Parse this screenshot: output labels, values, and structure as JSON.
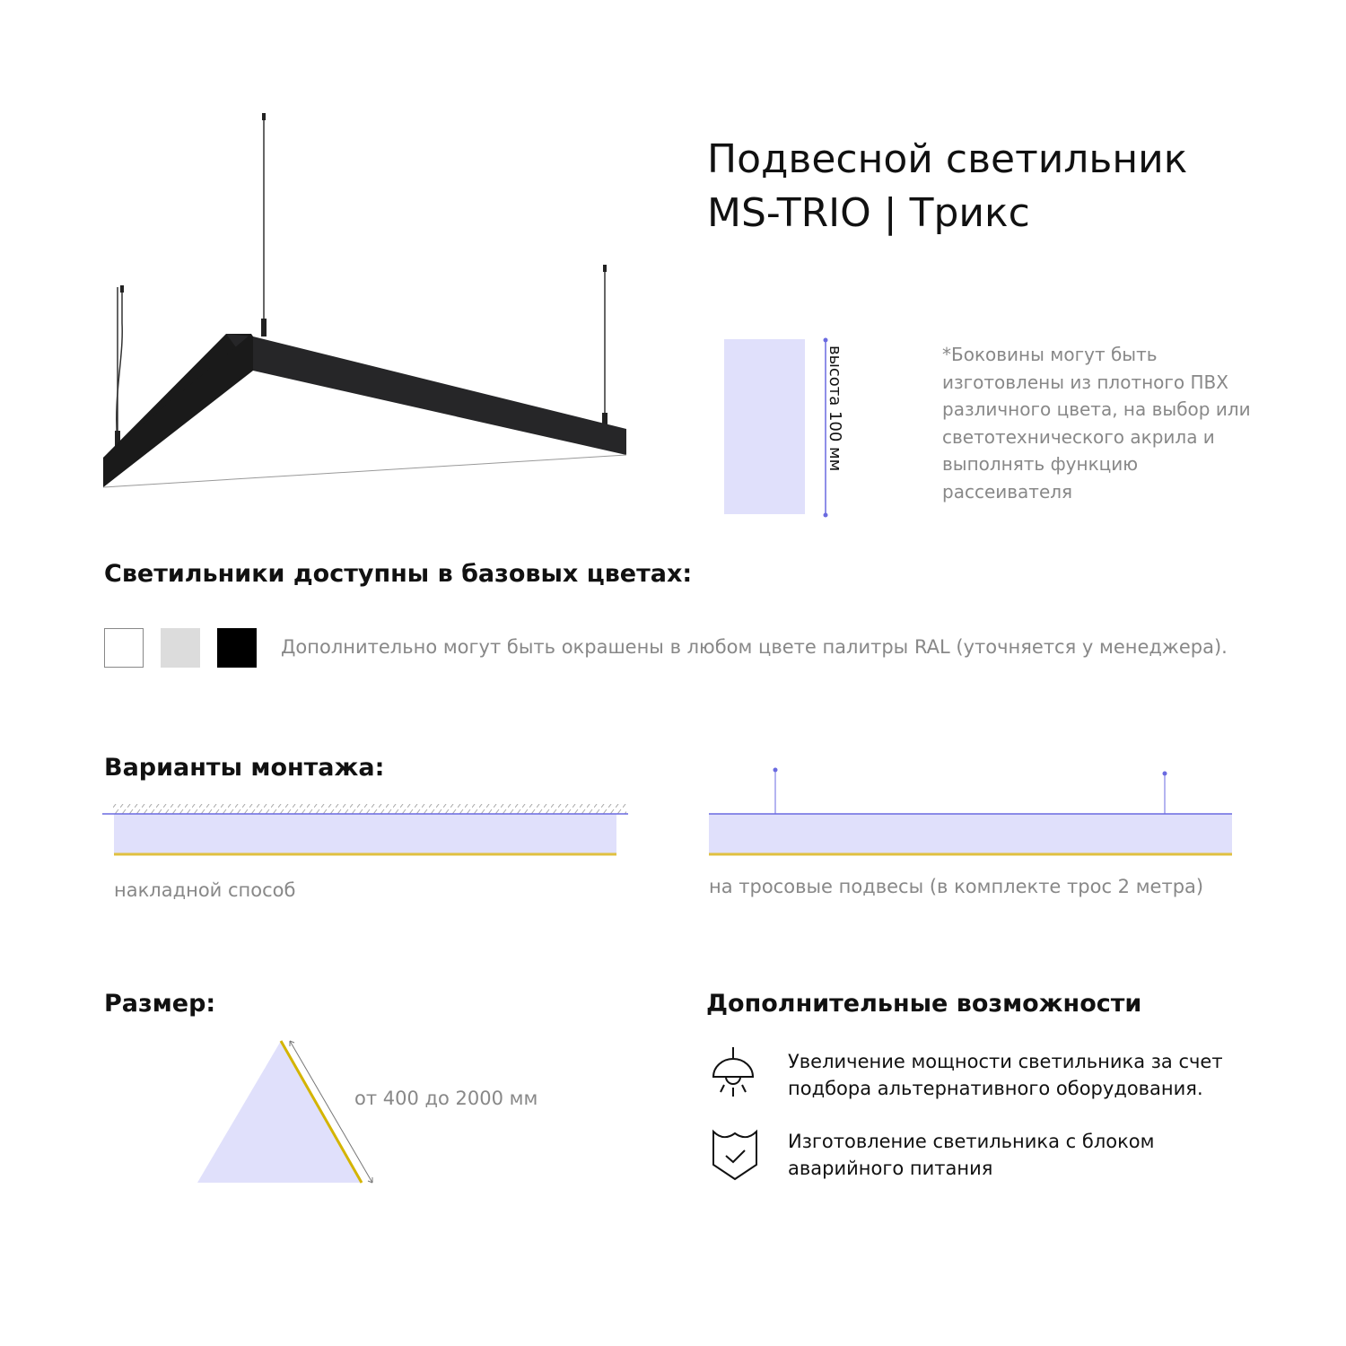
{
  "header": {
    "title_line1": "Подвесной светильник",
    "title_line2": "MS-TRIO | Трикс"
  },
  "side_panel": {
    "height_label": "высота 100 мм",
    "note": "*Боковины могут быть изготовлены из плотного ПВХ различного цвета, на выбор или светотехнического акрила и выполнять функцию рассеивателя"
  },
  "colors_section": {
    "heading": "Светильники доступны в базовых цветах:",
    "swatches": [
      "#ffffff",
      "#dcdcdc",
      "#000000"
    ],
    "note": "Дополнительно могут быть окрашены в любом цвете палитры RAL (уточняется у менеджера)."
  },
  "mounting": {
    "heading": "Варианты монтажа:",
    "options": [
      {
        "label": "накладной способ"
      },
      {
        "label": "на тросовые подвесы (в комплекте трос 2 метра)"
      }
    ]
  },
  "size": {
    "heading": "Размер:",
    "range": "от 400 до 2000 мм"
  },
  "extras": {
    "heading": "Дополнительные возможности",
    "items": [
      {
        "icon": "pendant-lamp-icon",
        "text": "Увеличение мощности светильника за счет подбора альтернативного оборудования."
      },
      {
        "icon": "shield-check-icon",
        "text": "Изготовление светильника с блоком аварийного питания"
      }
    ]
  },
  "palette": {
    "panel_fill": "#e0e0fb",
    "accent_line": "#6a6ae0",
    "light_line": "#e0c040"
  }
}
